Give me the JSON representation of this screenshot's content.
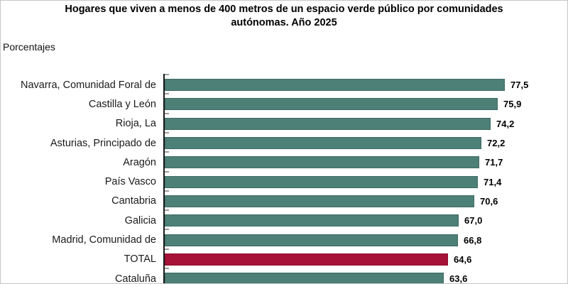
{
  "header": {
    "title_line1": "Hogares que viven a menos de 400 metros de un espacio verde público por comunidades",
    "title_line2": "autónomas. Año 2025",
    "units_label": "Porcentajes"
  },
  "chart_data": {
    "type": "bar",
    "orientation": "horizontal",
    "title": "Hogares que viven a menos de 400 metros de un espacio verde público por comunidades autónomas. Año 2025",
    "units": "Porcentajes",
    "categories": [
      "Navarra, Comunidad Foral de",
      "Castilla y León",
      "Rioja, La",
      "Asturias, Principado de",
      "Aragón",
      "País Vasco",
      "Cantabria",
      "Galicia",
      "Madrid, Comunidad de",
      "TOTAL",
      "Cataluña"
    ],
    "values": [
      77.5,
      75.9,
      74.2,
      72.2,
      71.7,
      71.4,
      70.6,
      67.0,
      66.8,
      64.6,
      63.6
    ],
    "value_labels": [
      "77,5",
      "75,9",
      "74,2",
      "72,2",
      "71,7",
      "71,4",
      "70,6",
      "67,0",
      "66,8",
      "64,6",
      "63,6"
    ],
    "highlight_category": "TOTAL",
    "bar_color": "#4d8077",
    "bar_border_color": "#3e6b63",
    "highlight_color": "#a71238",
    "highlight_border_color": "#8c0f2e",
    "axis_color": "#1a1a1a",
    "tick_color": "#9b9b9b",
    "xlim": [
      0,
      90.6
    ],
    "grid": false,
    "legend": false
  }
}
